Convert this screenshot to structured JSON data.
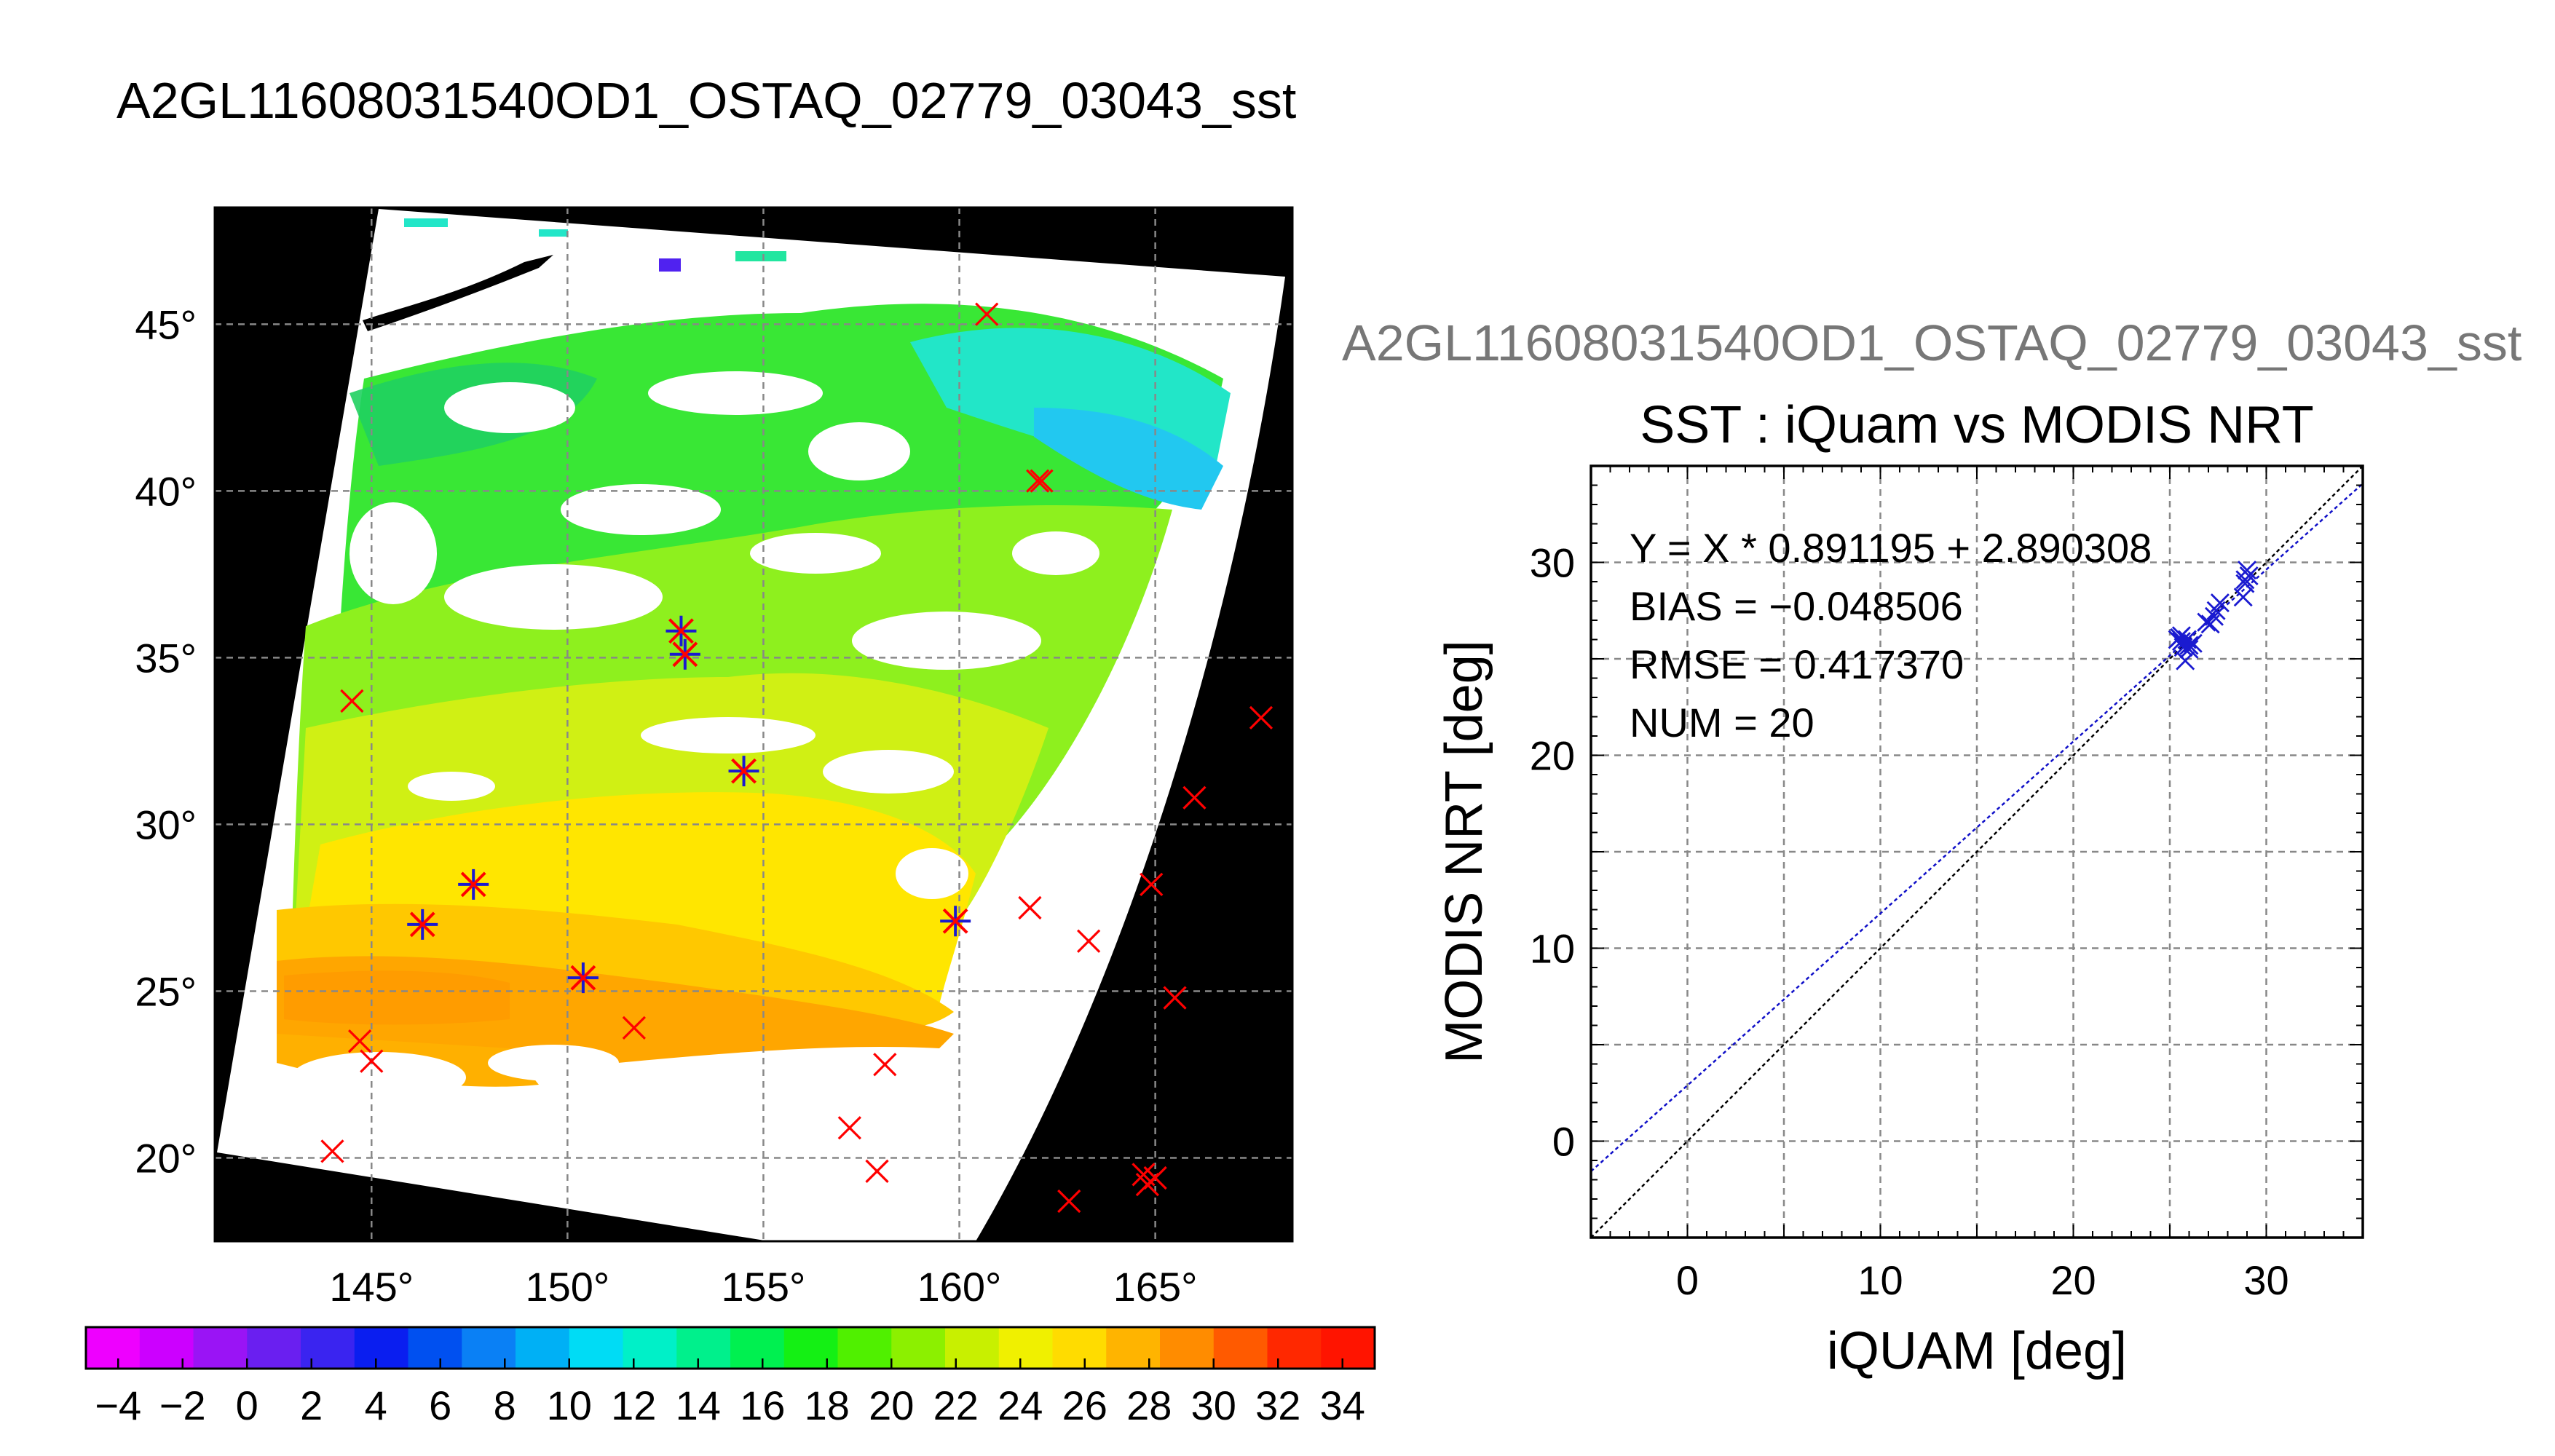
{
  "page_title": "A2GL11608031540OD1_OSTAQ_02779_03043_sst",
  "colors": {
    "match_marker": "#ff0000",
    "modis_marker": "#1a1ad0",
    "fit_line": "#1010c8",
    "identity_line": "#000000",
    "map_background": "#000000"
  },
  "chart_data": [
    {
      "type": "map",
      "name": "sst-map",
      "x_tick_labels": [
        "145°",
        "150°",
        "155°",
        "160°",
        "165°"
      ],
      "y_tick_labels": [
        "20°",
        "25°",
        "30°",
        "35°",
        "40°",
        "45°"
      ],
      "x_ticks": [
        145,
        150,
        155,
        160,
        165
      ],
      "y_ticks": [
        20,
        25,
        30,
        35,
        40,
        45
      ],
      "xlim": [
        141,
        168.5
      ],
      "ylim": [
        17.5,
        48.5
      ],
      "grid": true,
      "cross_points": [
        [
          144.7,
          23.5
        ],
        [
          145.0,
          22.9
        ],
        [
          144.0,
          20.2
        ],
        [
          144.5,
          33.7
        ],
        [
          151.7,
          23.9
        ],
        [
          158.1,
          22.8
        ],
        [
          157.2,
          20.9
        ],
        [
          157.9,
          19.6
        ],
        [
          162.8,
          18.7
        ],
        [
          164.7,
          19.5
        ],
        [
          164.8,
          19.2
        ],
        [
          165.0,
          19.4
        ],
        [
          161.8,
          27.5
        ],
        [
          163.3,
          26.5
        ],
        [
          164.9,
          28.2
        ],
        [
          165.5,
          24.8
        ],
        [
          166.0,
          30.8
        ],
        [
          167.7,
          33.2
        ],
        [
          160.7,
          45.3
        ],
        [
          162.0,
          40.3
        ],
        [
          162.1,
          40.3
        ]
      ],
      "star_points": [
        [
          146.3,
          27.0
        ],
        [
          147.6,
          28.2
        ],
        [
          150.4,
          25.4
        ],
        [
          152.9,
          35.8
        ],
        [
          153.0,
          35.1
        ],
        [
          154.5,
          31.6
        ],
        [
          159.9,
          27.1
        ]
      ]
    },
    {
      "type": "scatter",
      "name": "iquam-vs-modis",
      "figure_title": "A2GL11608031540OD1_OSTAQ_02779_03043_sst",
      "title": "SST : iQuam vs MODIS NRT",
      "xlabel": "iQUAM [deg]",
      "ylabel": "MODIS NRT [deg]",
      "xlim": [
        -5,
        35
      ],
      "ylim": [
        -5,
        35
      ],
      "x_ticks": [
        0,
        10,
        20,
        30
      ],
      "y_ticks": [
        0,
        10,
        20,
        30
      ],
      "x_tick_labels": [
        "0",
        "10",
        "20",
        "30"
      ],
      "y_tick_labels": [
        "0",
        "10",
        "20",
        "30"
      ],
      "grid": true,
      "annotations": [
        "Y = X * 0.891195 + 2.890308",
        "BIAS = −0.048506",
        "RMSE = 0.417370",
        "NUM = 20"
      ],
      "fit": {
        "slope": 0.891195,
        "intercept": 2.890308
      },
      "points": [
        [
          25.5,
          26.1
        ],
        [
          25.6,
          25.9
        ],
        [
          25.7,
          25.6
        ],
        [
          25.8,
          24.9
        ],
        [
          25.9,
          26.0
        ],
        [
          26.0,
          25.5
        ],
        [
          26.9,
          26.9
        ],
        [
          27.1,
          26.8
        ],
        [
          27.4,
          27.5
        ],
        [
          27.6,
          27.9
        ],
        [
          28.8,
          28.2
        ],
        [
          28.9,
          29.1
        ],
        [
          29.0,
          29.6
        ],
        [
          29.1,
          29.3
        ],
        [
          26.2,
          25.8
        ],
        [
          25.4,
          26.0
        ],
        [
          27.3,
          27.2
        ],
        [
          28.9,
          28.9
        ],
        [
          25.6,
          26.2
        ],
        [
          26.0,
          25.7
        ]
      ]
    },
    {
      "type": "colorbar",
      "name": "sst-colorbar",
      "tick_labels": [
        "−4",
        "−2",
        "0",
        "2",
        "4",
        "6",
        "8",
        "10",
        "12",
        "14",
        "16",
        "18",
        "20",
        "22",
        "24",
        "26",
        "28",
        "30",
        "32",
        "34"
      ],
      "range": [
        -5,
        35
      ],
      "colors": [
        "#ee00ff",
        "#cc00ff",
        "#9a14f5",
        "#6a1ff0",
        "#3a24f0",
        "#0a1ef0",
        "#0050f0",
        "#0a80f5",
        "#00b0f5",
        "#00dcf5",
        "#00f0c8",
        "#00f08c",
        "#00f050",
        "#14f014",
        "#50f000",
        "#8cf000",
        "#c8f000",
        "#f0f000",
        "#ffdc00",
        "#ffb400",
        "#ff8c00",
        "#ff5a00",
        "#ff2800",
        "#ff1400"
      ]
    }
  ]
}
